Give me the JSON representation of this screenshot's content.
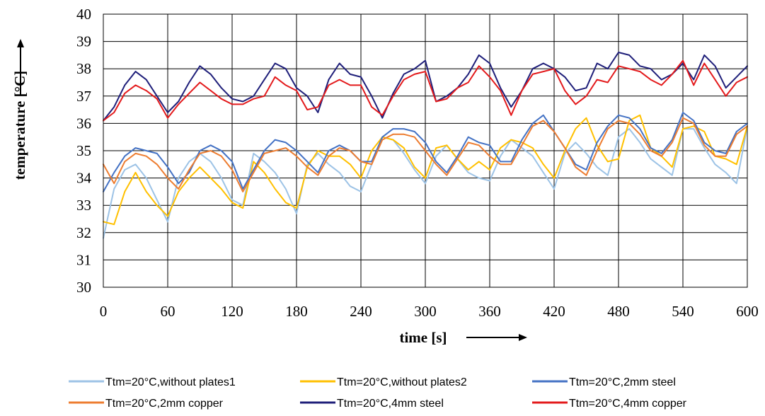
{
  "chart_data": {
    "type": "line",
    "xlabel": "time [s]",
    "ylabel": "temperature [°C]",
    "xlim": [
      0,
      600
    ],
    "ylim": [
      30,
      40
    ],
    "xticks": [
      0,
      60,
      120,
      180,
      240,
      300,
      360,
      420,
      480,
      540,
      600
    ],
    "yticks": [
      30,
      31,
      32,
      33,
      34,
      35,
      36,
      37,
      38,
      39,
      40
    ],
    "grid": true,
    "legend_position": "bottom",
    "x": [
      0,
      10,
      20,
      30,
      40,
      50,
      60,
      70,
      80,
      90,
      100,
      110,
      120,
      130,
      140,
      150,
      160,
      170,
      180,
      190,
      200,
      210,
      220,
      230,
      240,
      250,
      260,
      270,
      280,
      290,
      300,
      310,
      320,
      330,
      340,
      350,
      360,
      370,
      380,
      390,
      400,
      410,
      420,
      430,
      440,
      450,
      460,
      470,
      480,
      490,
      500,
      510,
      520,
      530,
      540,
      550,
      560,
      570,
      580,
      590,
      600
    ],
    "series": [
      {
        "name": "Ttm=20°C,without plates1",
        "color": "#9dc3e6",
        "values": [
          31.8,
          33.6,
          34.3,
          34.5,
          34.0,
          33.2,
          32.4,
          34.0,
          34.6,
          34.9,
          34.6,
          34.0,
          33.2,
          33.0,
          34.9,
          34.6,
          34.2,
          33.6,
          32.7,
          34.5,
          34.9,
          34.5,
          34.2,
          33.7,
          33.5,
          34.5,
          35.5,
          35.4,
          34.9,
          34.3,
          33.8,
          34.8,
          35.2,
          34.7,
          34.2,
          34.0,
          33.9,
          34.8,
          35.4,
          35.1,
          34.8,
          34.2,
          33.6,
          34.9,
          35.3,
          34.9,
          34.4,
          34.1,
          35.5,
          35.8,
          35.3,
          34.7,
          34.4,
          34.1,
          35.8,
          35.8,
          35.1,
          34.5,
          34.2,
          33.8,
          35.9
        ]
      },
      {
        "name": "Ttm=20°C,without plates2",
        "color": "#ffc000",
        "values": [
          32.4,
          32.3,
          33.5,
          34.2,
          33.5,
          33.0,
          32.6,
          33.5,
          34.0,
          34.4,
          34.0,
          33.6,
          33.1,
          32.9,
          34.6,
          34.2,
          33.6,
          33.1,
          32.9,
          34.4,
          35.0,
          34.8,
          34.8,
          34.5,
          34.0,
          35.0,
          35.5,
          35.4,
          35.1,
          34.4,
          34.0,
          35.1,
          35.2,
          34.7,
          34.3,
          34.6,
          34.3,
          35.1,
          35.4,
          35.3,
          35.1,
          34.5,
          34.0,
          35.0,
          35.8,
          36.2,
          35.2,
          34.6,
          34.7,
          36.1,
          36.3,
          35.1,
          34.8,
          34.4,
          35.8,
          35.9,
          35.7,
          34.8,
          34.7,
          34.5,
          35.9
        ]
      },
      {
        "name": "Ttm=20°C,2mm steel",
        "color": "#4472c4",
        "values": [
          33.5,
          34.2,
          34.8,
          35.1,
          35.0,
          34.9,
          34.4,
          33.8,
          34.2,
          35.0,
          35.2,
          35.0,
          34.6,
          33.6,
          34.3,
          35.0,
          35.4,
          35.3,
          35.0,
          34.6,
          34.2,
          35.0,
          35.2,
          35.0,
          34.6,
          34.6,
          35.5,
          35.8,
          35.8,
          35.7,
          35.3,
          34.6,
          34.2,
          34.8,
          35.5,
          35.3,
          35.2,
          34.6,
          34.6,
          35.4,
          36.0,
          36.3,
          35.7,
          35.1,
          34.5,
          34.3,
          35.3,
          35.9,
          36.3,
          36.2,
          35.8,
          35.1,
          34.9,
          35.4,
          36.4,
          36.1,
          35.3,
          35.0,
          34.9,
          35.7,
          36.0
        ]
      },
      {
        "name": "Ttm=20°C,2mm copper",
        "color": "#ed7d31",
        "values": [
          34.5,
          33.8,
          34.6,
          34.9,
          34.8,
          34.5,
          34.0,
          33.6,
          34.3,
          34.9,
          35.0,
          34.8,
          34.3,
          33.5,
          34.2,
          34.9,
          35.0,
          35.1,
          34.8,
          34.4,
          34.1,
          34.8,
          35.1,
          35.0,
          34.6,
          34.5,
          35.4,
          35.6,
          35.6,
          35.5,
          35.0,
          34.5,
          34.1,
          34.7,
          35.3,
          35.2,
          34.8,
          34.5,
          34.5,
          35.2,
          35.9,
          36.1,
          35.7,
          35.1,
          34.4,
          34.1,
          35.0,
          35.8,
          36.1,
          36.0,
          35.6,
          35.0,
          34.8,
          35.3,
          36.2,
          36.0,
          35.2,
          34.8,
          34.8,
          35.6,
          35.9
        ]
      },
      {
        "name": "Ttm=20°C,4mm steel",
        "color": "#1f1f7a",
        "values": [
          36.1,
          36.6,
          37.4,
          37.9,
          37.6,
          37.0,
          36.4,
          36.8,
          37.5,
          38.1,
          37.8,
          37.3,
          36.9,
          36.8,
          37.0,
          37.6,
          38.2,
          38.0,
          37.3,
          37.0,
          36.4,
          37.6,
          38.2,
          37.8,
          37.7,
          37.0,
          36.2,
          37.1,
          37.8,
          38.0,
          38.3,
          36.8,
          37.0,
          37.3,
          37.8,
          38.5,
          38.2,
          37.3,
          36.6,
          37.2,
          38.0,
          38.2,
          38.0,
          37.7,
          37.2,
          37.3,
          38.2,
          38.0,
          38.6,
          38.5,
          38.1,
          38.0,
          37.6,
          37.8,
          38.2,
          37.6,
          38.5,
          38.1,
          37.3,
          37.7,
          38.1
        ]
      },
      {
        "name": "Ttm=20°C,4mm copper",
        "color": "#e31a1c",
        "values": [
          36.1,
          36.4,
          37.1,
          37.4,
          37.2,
          36.9,
          36.2,
          36.7,
          37.1,
          37.5,
          37.2,
          36.9,
          36.7,
          36.7,
          36.9,
          37.0,
          37.7,
          37.4,
          37.2,
          36.5,
          36.6,
          37.4,
          37.6,
          37.4,
          37.4,
          36.6,
          36.3,
          37.0,
          37.6,
          37.8,
          37.9,
          36.8,
          36.9,
          37.3,
          37.5,
          38.1,
          37.7,
          37.2,
          36.3,
          37.2,
          37.8,
          37.9,
          38.0,
          37.2,
          36.7,
          37.0,
          37.6,
          37.5,
          38.1,
          38.0,
          37.9,
          37.6,
          37.4,
          37.8,
          38.3,
          37.4,
          38.2,
          37.6,
          37.0,
          37.5,
          37.7
        ]
      }
    ]
  }
}
